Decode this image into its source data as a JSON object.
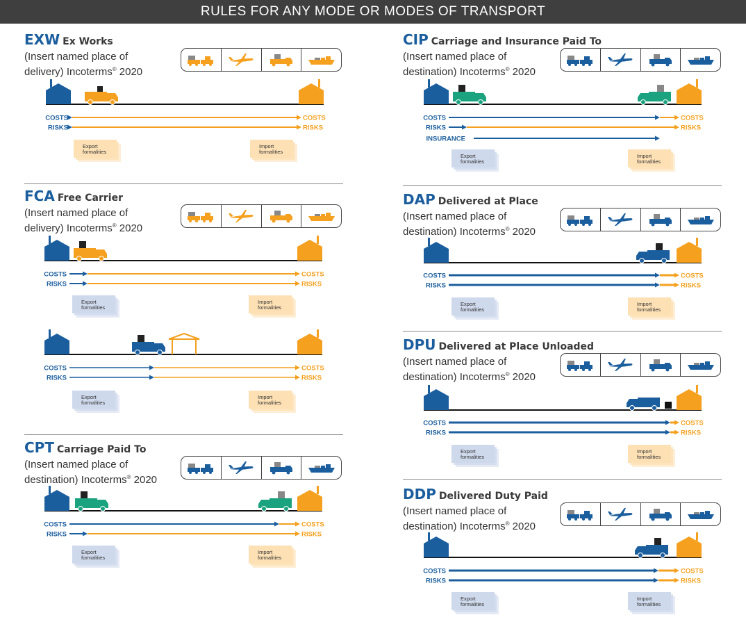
{
  "page_title": "RULES FOR ANY MODE OR MODES OF TRANSPORT",
  "labels": {
    "costs": "COSTS",
    "risks": "RISKS",
    "insurance": "INSURANCE",
    "export_formalities": [
      "Export",
      "formalities"
    ],
    "import_formalities": [
      "Import",
      "formalities"
    ]
  },
  "colors": {
    "seller": "#1b5e9e",
    "buyer": "#f5a01e",
    "truck_teal": "#1aa37e",
    "banner": "#3f3f3f"
  },
  "rules": [
    {
      "id": "exw",
      "code": "EXW",
      "name": "Ex Works",
      "place_line1": "(Insert named place of",
      "place_line2": "delivery) Incoterms",
      "reg": "®",
      "year": " 2020",
      "mode_color": "buyer"
    },
    {
      "id": "fca",
      "code": "FCA",
      "name": "Free Carrier",
      "place_line1": "(Insert named place of",
      "place_line2": "delivery) Incoterms",
      "reg": "®",
      "year": " 2020",
      "mode_color": "buyer"
    },
    {
      "id": "cpt",
      "code": "CPT",
      "name": "Carriage Paid To",
      "place_line1": "(Insert named place of",
      "place_line2": "destination) Incoterms",
      "reg": "®",
      "year": " 2020",
      "mode_color": "seller"
    },
    {
      "id": "cip",
      "code": "CIP",
      "name": "Carriage and Insurance Paid To",
      "place_line1": "(Insert named place of",
      "place_line2": "destination) Incoterms",
      "reg": "®",
      "year": " 2020",
      "mode_color": "seller"
    },
    {
      "id": "dap",
      "code": "DAP",
      "name": "Delivered at Place",
      "place_line1": "(Insert named place of",
      "place_line2": "destination) Incoterms",
      "reg": "®",
      "year": " 2020",
      "mode_color": "seller"
    },
    {
      "id": "dpu",
      "code": "DPU",
      "name": "Delivered at Place Unloaded",
      "place_line1": "(Insert named place of",
      "place_line2": "destination) Incoterms",
      "reg": "®",
      "year": " 2020",
      "mode_color": "seller"
    },
    {
      "id": "ddp",
      "code": "DDP",
      "name": "Delivered Duty Paid",
      "place_line1": "(Insert named place of",
      "place_line2": "destination) Incoterms",
      "reg": "®",
      "year": " 2020",
      "mode_color": "seller"
    }
  ]
}
